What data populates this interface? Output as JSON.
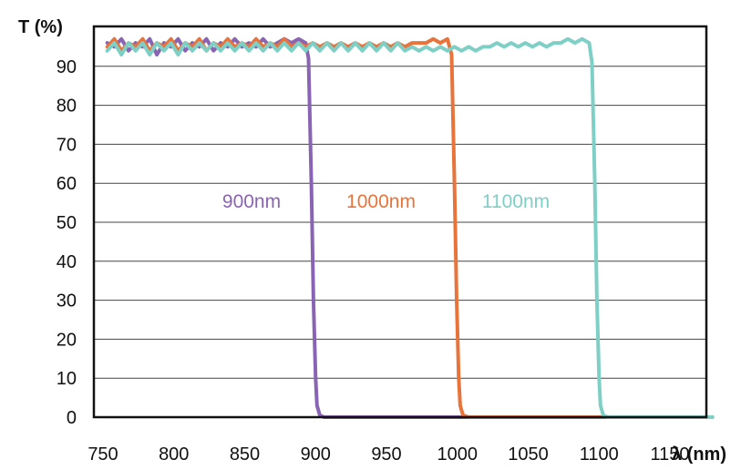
{
  "chart_data": {
    "type": "line",
    "title": "",
    "xlabel": "λ (nm)",
    "ylabel": "T (%)",
    "xlim": [
      750,
      1180
    ],
    "ylim": [
      0,
      100
    ],
    "xticks": [
      "750",
      "800",
      "850",
      "900",
      "950",
      "1000",
      "1050",
      "1100",
      "1150"
    ],
    "yticks": [
      "0",
      "10",
      "20",
      "30",
      "40",
      "50",
      "60",
      "70",
      "80",
      "90"
    ],
    "grid": true,
    "legend": "none",
    "series": [
      {
        "name": "900nm",
        "color": "#8a64b4",
        "points": [
          [
            753,
            96
          ],
          [
            758,
            95
          ],
          [
            763,
            97
          ],
          [
            768,
            94
          ],
          [
            773,
            96
          ],
          [
            778,
            95
          ],
          [
            783,
            97
          ],
          [
            788,
            93
          ],
          [
            793,
            96
          ],
          [
            798,
            95
          ],
          [
            803,
            97
          ],
          [
            808,
            94
          ],
          [
            813,
            96
          ],
          [
            818,
            95
          ],
          [
            823,
            97
          ],
          [
            828,
            94
          ],
          [
            833,
            96
          ],
          [
            838,
            95
          ],
          [
            843,
            97
          ],
          [
            848,
            95
          ],
          [
            853,
            96
          ],
          [
            858,
            95
          ],
          [
            863,
            97
          ],
          [
            868,
            95
          ],
          [
            873,
            96
          ],
          [
            878,
            97
          ],
          [
            883,
            96
          ],
          [
            888,
            97
          ],
          [
            893,
            96
          ],
          [
            895,
            92
          ],
          [
            897,
            60
          ],
          [
            898.5,
            30
          ],
          [
            900,
            10
          ],
          [
            901,
            3
          ],
          [
            903,
            0.5
          ],
          [
            906,
            0
          ],
          [
            1180,
            0
          ]
        ]
      },
      {
        "name": "1000nm",
        "color": "#e8743b",
        "points": [
          [
            753,
            95
          ],
          [
            758,
            97
          ],
          [
            763,
            94
          ],
          [
            768,
            96
          ],
          [
            773,
            95
          ],
          [
            778,
            97
          ],
          [
            783,
            94
          ],
          [
            788,
            96
          ],
          [
            793,
            95
          ],
          [
            798,
            97
          ],
          [
            803,
            94
          ],
          [
            808,
            96
          ],
          [
            813,
            95
          ],
          [
            818,
            97
          ],
          [
            823,
            94
          ],
          [
            828,
            96
          ],
          [
            833,
            95
          ],
          [
            838,
            97
          ],
          [
            843,
            95
          ],
          [
            848,
            96
          ],
          [
            853,
            95
          ],
          [
            858,
            97
          ],
          [
            863,
            95
          ],
          [
            868,
            96
          ],
          [
            873,
            95
          ],
          [
            878,
            97
          ],
          [
            883,
            95
          ],
          [
            888,
            96
          ],
          [
            893,
            95
          ],
          [
            898,
            96
          ],
          [
            903,
            95
          ],
          [
            908,
            96
          ],
          [
            913,
            95
          ],
          [
            918,
            96
          ],
          [
            923,
            95
          ],
          [
            928,
            96
          ],
          [
            933,
            95
          ],
          [
            938,
            96
          ],
          [
            943,
            95
          ],
          [
            948,
            96
          ],
          [
            953,
            95
          ],
          [
            958,
            96
          ],
          [
            963,
            95
          ],
          [
            968,
            96
          ],
          [
            973,
            96
          ],
          [
            978,
            96
          ],
          [
            983,
            97
          ],
          [
            988,
            96
          ],
          [
            993,
            97
          ],
          [
            996,
            93
          ],
          [
            998,
            60
          ],
          [
            999.5,
            30
          ],
          [
            1001,
            10
          ],
          [
            1002,
            3
          ],
          [
            1004,
            0.5
          ],
          [
            1008,
            0
          ],
          [
            1180,
            0
          ]
        ]
      },
      {
        "name": "1100nm",
        "color": "#7ecfc6",
        "points": [
          [
            753,
            94
          ],
          [
            758,
            96
          ],
          [
            763,
            93
          ],
          [
            768,
            96
          ],
          [
            773,
            94
          ],
          [
            778,
            96
          ],
          [
            783,
            93
          ],
          [
            788,
            96
          ],
          [
            793,
            94
          ],
          [
            798,
            96
          ],
          [
            803,
            93
          ],
          [
            808,
            96
          ],
          [
            813,
            94
          ],
          [
            818,
            96
          ],
          [
            823,
            94
          ],
          [
            828,
            96
          ],
          [
            833,
            94
          ],
          [
            838,
            96
          ],
          [
            843,
            94
          ],
          [
            848,
            96
          ],
          [
            853,
            94
          ],
          [
            858,
            96
          ],
          [
            863,
            94
          ],
          [
            868,
            96
          ],
          [
            873,
            94
          ],
          [
            878,
            96
          ],
          [
            883,
            94
          ],
          [
            888,
            96
          ],
          [
            893,
            94
          ],
          [
            898,
            96
          ],
          [
            903,
            94
          ],
          [
            908,
            96
          ],
          [
            913,
            94
          ],
          [
            918,
            96
          ],
          [
            923,
            94
          ],
          [
            928,
            96
          ],
          [
            933,
            94
          ],
          [
            938,
            96
          ],
          [
            943,
            94
          ],
          [
            948,
            96
          ],
          [
            953,
            94
          ],
          [
            958,
            96
          ],
          [
            963,
            94
          ],
          [
            968,
            95
          ],
          [
            973,
            94
          ],
          [
            978,
            95
          ],
          [
            983,
            94
          ],
          [
            988,
            95
          ],
          [
            993,
            94
          ],
          [
            998,
            95
          ],
          [
            1003,
            94
          ],
          [
            1008,
            95
          ],
          [
            1013,
            94
          ],
          [
            1018,
            95
          ],
          [
            1023,
            95
          ],
          [
            1028,
            96
          ],
          [
            1033,
            95
          ],
          [
            1038,
            96
          ],
          [
            1043,
            95
          ],
          [
            1048,
            96
          ],
          [
            1053,
            95
          ],
          [
            1058,
            96
          ],
          [
            1063,
            95
          ],
          [
            1068,
            96
          ],
          [
            1073,
            96
          ],
          [
            1078,
            97
          ],
          [
            1083,
            96
          ],
          [
            1088,
            97
          ],
          [
            1093,
            96
          ],
          [
            1095,
            91
          ],
          [
            1097,
            60
          ],
          [
            1098.5,
            30
          ],
          [
            1100,
            10
          ],
          [
            1101,
            3
          ],
          [
            1103,
            0.5
          ],
          [
            1106,
            0
          ],
          [
            1180,
            0
          ]
        ]
      }
    ]
  }
}
